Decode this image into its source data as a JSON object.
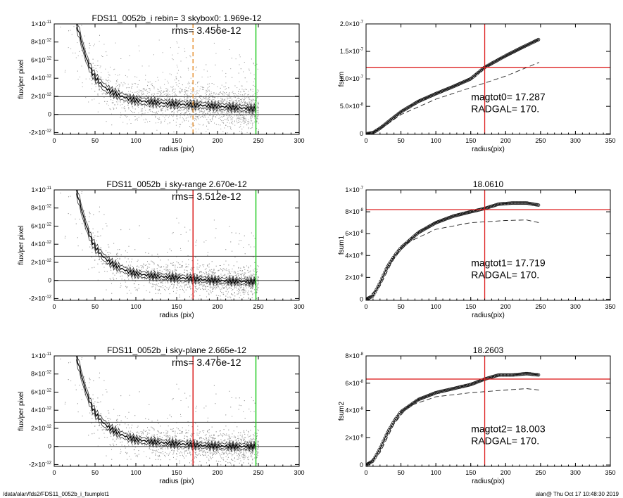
{
  "footer": {
    "path": "/data/alan/fds2/FDS11_0052b_i_fsumplot1",
    "stamp": "alan@  Thu Oct 17 10:48:30 2019"
  },
  "chart_data": [
    {
      "id": "left1",
      "type": "scatter",
      "title": "FDS11_0052b_i rebin= 3    skybox0:  1.969e-12",
      "annotation": "rms= 3.456e-12",
      "xlabel": "radius (pix)",
      "ylabel": "flux/per pixel",
      "xlim": [
        0,
        300
      ],
      "ylim": [
        -2.2e-12,
        1e-11
      ],
      "xticks": [
        "0",
        "50",
        "100",
        "150",
        "200",
        "250",
        "300"
      ],
      "yticks": [
        {
          "v": -2e-12,
          "m": "-2×10",
          "e": "-12"
        },
        {
          "v": 0,
          "m": "0",
          "e": ""
        },
        {
          "v": 2e-12,
          "m": "2×10",
          "e": "-12"
        },
        {
          "v": 4e-12,
          "m": "4×10",
          "e": "-12"
        },
        {
          "v": 6e-12,
          "m": "6×10",
          "e": "-12"
        },
        {
          "v": 8e-12,
          "m": "8×10",
          "e": "-12"
        },
        {
          "v": 1e-11,
          "m": "1×10",
          "e": "-11"
        }
      ],
      "profile": [
        [
          27,
          1e-11
        ],
        [
          30,
          9.2e-12
        ],
        [
          35,
          7.5e-12
        ],
        [
          40,
          6e-12
        ],
        [
          45,
          4.9e-12
        ],
        [
          50,
          4.1e-12
        ],
        [
          60,
          3.1e-12
        ],
        [
          70,
          2.5e-12
        ],
        [
          80,
          2.1e-12
        ],
        [
          90,
          1.75e-12
        ],
        [
          100,
          1.55e-12
        ],
        [
          120,
          1.35e-12
        ],
        [
          140,
          1.2e-12
        ],
        [
          160,
          1.1e-12
        ],
        [
          180,
          1e-12
        ],
        [
          200,
          9e-13
        ],
        [
          220,
          7.5e-13
        ],
        [
          248,
          6e-13
        ]
      ],
      "hlines": [
        {
          "y": 1.969e-12,
          "color": "#444444"
        },
        {
          "y": 0,
          "color": "#444444"
        }
      ],
      "vlines": [
        {
          "x": 170,
          "color": "#e8963c",
          "dash": true
        },
        {
          "x": 247,
          "color": "#22cc22",
          "dash": false
        }
      ]
    },
    {
      "id": "right1",
      "type": "line",
      "title": "",
      "annotation": [
        "magtot0=  17.287",
        "RADGAL=    170."
      ],
      "xlabel": "radius(pix)",
      "ylabel": "fsum",
      "xlim": [
        0,
        350
      ],
      "ylim": [
        -1e-09,
        2e-07
      ],
      "xticks": [
        "0",
        "50",
        "100",
        "150",
        "200",
        "250",
        "300",
        "350"
      ],
      "yticks": [
        {
          "v": 0,
          "m": "0",
          "e": ""
        },
        {
          "v": 5e-08,
          "m": "5.0×10",
          "e": "-8"
        },
        {
          "v": 1e-07,
          "m": "1.0×10",
          "e": "-7"
        },
        {
          "v": 1.5e-07,
          "m": "1.5×10",
          "e": "-7"
        },
        {
          "v": 2e-07,
          "m": "2.0×10",
          "e": "-7"
        }
      ],
      "curve": [
        [
          0,
          0
        ],
        [
          10,
          2e-09
        ],
        [
          20,
          1e-08
        ],
        [
          30,
          2e-08
        ],
        [
          50,
          4e-08
        ],
        [
          75,
          5.9e-08
        ],
        [
          100,
          7.3e-08
        ],
        [
          125,
          8.6e-08
        ],
        [
          150,
          1e-07
        ],
        [
          170,
          1.21e-07
        ],
        [
          200,
          1.42e-07
        ],
        [
          225,
          1.58e-07
        ],
        [
          248,
          1.72e-07
        ]
      ],
      "dashed": [
        [
          0,
          0
        ],
        [
          20,
          8e-09
        ],
        [
          50,
          3.5e-08
        ],
        [
          100,
          6.3e-08
        ],
        [
          150,
          8.4e-08
        ],
        [
          200,
          1.05e-07
        ],
        [
          248,
          1.3e-07
        ]
      ],
      "hline": 1.21e-07,
      "vline": 170
    },
    {
      "id": "left2",
      "type": "scatter",
      "title": "FDS11_0052b_i sky-range  2.670e-12",
      "annotation": "rms= 3.512e-12",
      "xlabel": "radius (pix)",
      "ylabel": "flux/per pixel",
      "xlim": [
        0,
        300
      ],
      "ylim": [
        -2.2e-12,
        1e-11
      ],
      "xticks": [
        "0",
        "50",
        "100",
        "150",
        "200",
        "250",
        "300"
      ],
      "yticks": [
        {
          "v": -2e-12,
          "m": "-2×10",
          "e": "-12"
        },
        {
          "v": 0,
          "m": "0",
          "e": ""
        },
        {
          "v": 2e-12,
          "m": "2×10",
          "e": "-12"
        },
        {
          "v": 4e-12,
          "m": "4×10",
          "e": "-12"
        },
        {
          "v": 6e-12,
          "m": "6×10",
          "e": "-12"
        },
        {
          "v": 8e-12,
          "m": "8×10",
          "e": "-12"
        },
        {
          "v": 1e-11,
          "m": "1×10",
          "e": "-11"
        }
      ],
      "profile": [
        [
          27,
          1e-11
        ],
        [
          30,
          9e-12
        ],
        [
          35,
          7.3e-12
        ],
        [
          40,
          5.8e-12
        ],
        [
          45,
          4.6e-12
        ],
        [
          50,
          3.7e-12
        ],
        [
          60,
          2.6e-12
        ],
        [
          70,
          1.9e-12
        ],
        [
          80,
          1.4e-12
        ],
        [
          90,
          1e-12
        ],
        [
          100,
          7.5e-13
        ],
        [
          120,
          5e-13
        ],
        [
          140,
          3.5e-13
        ],
        [
          160,
          2.5e-13
        ],
        [
          180,
          1e-13
        ],
        [
          200,
          0.0
        ],
        [
          220,
          -1e-13
        ],
        [
          248,
          -1.5e-13
        ]
      ],
      "hlines": [
        {
          "y": 2.67e-12,
          "color": "#444444"
        },
        {
          "y": 0,
          "color": "#444444"
        }
      ],
      "vlines": [
        {
          "x": 170,
          "color": "#dd2222",
          "dash": false
        },
        {
          "x": 247,
          "color": "#22cc22",
          "dash": false
        }
      ]
    },
    {
      "id": "right2",
      "type": "line",
      "title": "18.0610",
      "annotation": [
        "magtot1=  17.719",
        "RADGAL=    170."
      ],
      "xlabel": "radius(pix)",
      "ylabel": "fsum1",
      "xlim": [
        0,
        350
      ],
      "ylim": [
        -1e-09,
        1e-07
      ],
      "xticks": [
        "0",
        "50",
        "100",
        "150",
        "200",
        "250",
        "300",
        "350"
      ],
      "yticks": [
        {
          "v": 0,
          "m": "0",
          "e": ""
        },
        {
          "v": 2e-08,
          "m": "2×10",
          "e": "-8"
        },
        {
          "v": 4e-08,
          "m": "4×10",
          "e": "-8"
        },
        {
          "v": 6e-08,
          "m": "6×10",
          "e": "-8"
        },
        {
          "v": 8e-08,
          "m": "8×10",
          "e": "-8"
        },
        {
          "v": 1e-07,
          "m": "1×10",
          "e": "-7"
        }
      ],
      "curve": [
        [
          0,
          0
        ],
        [
          10,
          3e-09
        ],
        [
          20,
          1.5e-08
        ],
        [
          30,
          2.9e-08
        ],
        [
          40,
          3.9e-08
        ],
        [
          50,
          4.7e-08
        ],
        [
          75,
          6.1e-08
        ],
        [
          100,
          7e-08
        ],
        [
          125,
          7.6e-08
        ],
        [
          150,
          8e-08
        ],
        [
          170,
          8.3e-08
        ],
        [
          190,
          8.7e-08
        ],
        [
          210,
          8.8e-08
        ],
        [
          230,
          8.8e-08
        ],
        [
          248,
          8.6e-08
        ]
      ],
      "dashed": [
        [
          0,
          0
        ],
        [
          20,
          1.2e-08
        ],
        [
          40,
          3.8e-08
        ],
        [
          60,
          5.2e-08
        ],
        [
          100,
          6.4e-08
        ],
        [
          150,
          7e-08
        ],
        [
          200,
          7.2e-08
        ],
        [
          230,
          7.25e-08
        ],
        [
          248,
          7e-08
        ]
      ],
      "hline": 8.2e-08,
      "vline": 170
    },
    {
      "id": "left3",
      "type": "scatter",
      "title": "FDS11_0052b_i sky-plane  2.665e-12",
      "annotation": "rms= 3.476e-12",
      "xlabel": "radius (pix)",
      "ylabel": "flux/per pixel",
      "xlim": [
        0,
        300
      ],
      "ylim": [
        -2.2e-12,
        1e-11
      ],
      "xticks": [
        "0",
        "50",
        "100",
        "150",
        "200",
        "250",
        "300"
      ],
      "yticks": [
        {
          "v": -2e-12,
          "m": "-2×10",
          "e": "-12"
        },
        {
          "v": 0,
          "m": "0",
          "e": ""
        },
        {
          "v": 2e-12,
          "m": "2×10",
          "e": "-12"
        },
        {
          "v": 4e-12,
          "m": "4×10",
          "e": "-12"
        },
        {
          "v": 6e-12,
          "m": "6×10",
          "e": "-12"
        },
        {
          "v": 8e-12,
          "m": "8×10",
          "e": "-12"
        },
        {
          "v": 1e-11,
          "m": "1×10",
          "e": "-11"
        }
      ],
      "profile": [
        [
          27,
          1e-11
        ],
        [
          30,
          9e-12
        ],
        [
          35,
          7.3e-12
        ],
        [
          40,
          5.8e-12
        ],
        [
          45,
          4.6e-12
        ],
        [
          50,
          3.7e-12
        ],
        [
          60,
          2.6e-12
        ],
        [
          70,
          1.9e-12
        ],
        [
          80,
          1.4e-12
        ],
        [
          90,
          1e-12
        ],
        [
          100,
          7.5e-13
        ],
        [
          120,
          5e-13
        ],
        [
          140,
          3.5e-13
        ],
        [
          160,
          2.5e-13
        ],
        [
          180,
          1e-13
        ],
        [
          200,
          5e-14
        ],
        [
          220,
          0.0
        ],
        [
          248,
          0.0
        ]
      ],
      "hlines": [
        {
          "y": 2.665e-12,
          "color": "#444444"
        },
        {
          "y": 0,
          "color": "#444444"
        }
      ],
      "vlines": [
        {
          "x": 170,
          "color": "#dd2222",
          "dash": false
        },
        {
          "x": 247,
          "color": "#22cc22",
          "dash": false
        }
      ]
    },
    {
      "id": "right3",
      "type": "line",
      "title": "18.2603",
      "annotation": [
        "magtot2=  18.003",
        "RADGAL=    170."
      ],
      "xlabel": "radius(pix)",
      "ylabel": "fsum2",
      "xlim": [
        0,
        350
      ],
      "ylim": [
        -1e-09,
        8e-08
      ],
      "xticks": [
        "0",
        "50",
        "100",
        "150",
        "200",
        "250",
        "300",
        "350"
      ],
      "yticks": [
        {
          "v": 0,
          "m": "0",
          "e": ""
        },
        {
          "v": 2e-08,
          "m": "2×10",
          "e": "-8"
        },
        {
          "v": 4e-08,
          "m": "4×10",
          "e": "-8"
        },
        {
          "v": 6e-08,
          "m": "6×10",
          "e": "-8"
        },
        {
          "v": 8e-08,
          "m": "8×10",
          "e": "-8"
        }
      ],
      "curve": [
        [
          0,
          0
        ],
        [
          10,
          3e-09
        ],
        [
          20,
          1.2e-08
        ],
        [
          30,
          2.3e-08
        ],
        [
          40,
          3.2e-08
        ],
        [
          50,
          3.9e-08
        ],
        [
          75,
          4.8e-08
        ],
        [
          100,
          5.3e-08
        ],
        [
          125,
          5.6e-08
        ],
        [
          150,
          5.9e-08
        ],
        [
          170,
          6.3e-08
        ],
        [
          190,
          6.6e-08
        ],
        [
          210,
          6.6e-08
        ],
        [
          230,
          6.7e-08
        ],
        [
          248,
          6.6e-08
        ]
      ],
      "dashed": [
        [
          0,
          0
        ],
        [
          20,
          9e-09
        ],
        [
          40,
          3e-08
        ],
        [
          60,
          4.3e-08
        ],
        [
          100,
          5e-08
        ],
        [
          150,
          5.3e-08
        ],
        [
          200,
          5.5e-08
        ],
        [
          230,
          5.6e-08
        ],
        [
          248,
          5.5e-08
        ]
      ],
      "hline": 6.3e-08,
      "vline": 170
    }
  ]
}
